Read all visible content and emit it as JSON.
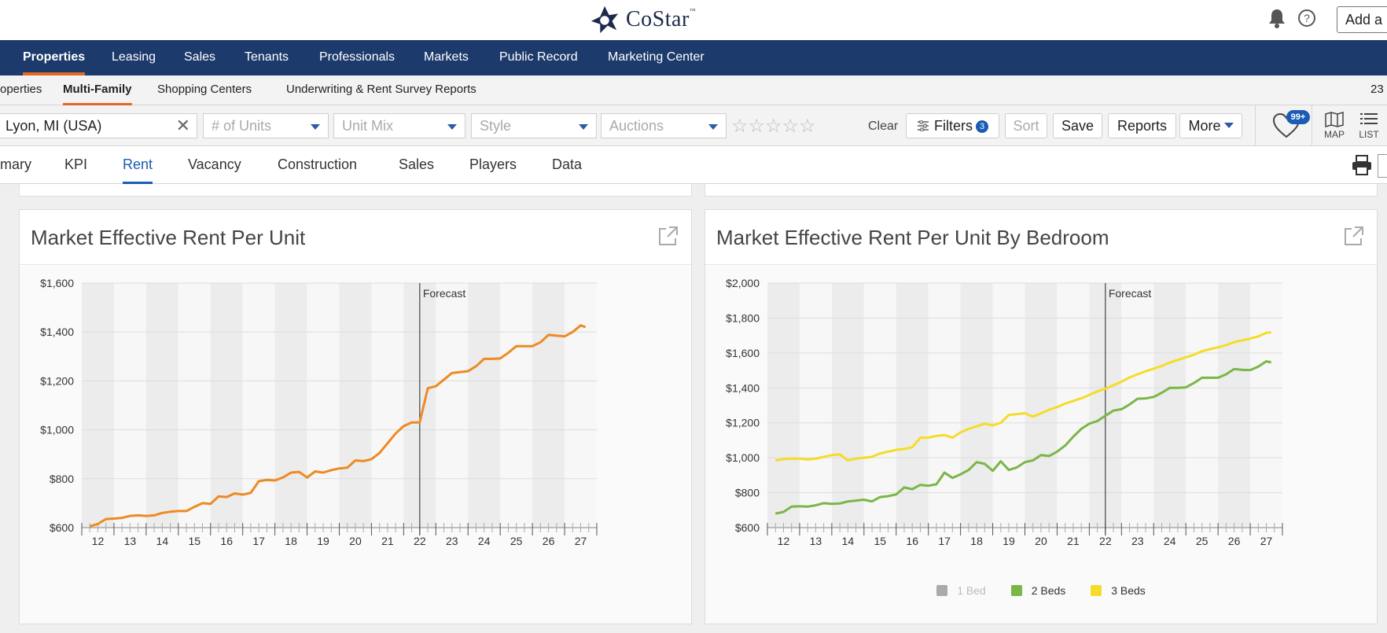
{
  "header": {
    "brand": "CoStar",
    "trademark": "™",
    "add_button": "Add a l",
    "icons": [
      "bell-icon",
      "help-icon"
    ]
  },
  "main_nav": [
    {
      "label": "Properties",
      "active": true
    },
    {
      "label": "Leasing"
    },
    {
      "label": "Sales"
    },
    {
      "label": "Tenants"
    },
    {
      "label": "Professionals"
    },
    {
      "label": "Markets"
    },
    {
      "label": "Public Record"
    },
    {
      "label": "Marketing Center"
    }
  ],
  "sub_nav": [
    {
      "label": "operties"
    },
    {
      "label": "Multi-Family",
      "active": true
    },
    {
      "label": "Shopping Centers"
    },
    {
      "label": "Underwriting & Rent Survey Reports"
    },
    {
      "label": "23"
    }
  ],
  "filters": {
    "location": "Lyon, MI (USA)",
    "units_placeholder": "# of Units",
    "unit_mix_placeholder": "Unit Mix",
    "style_placeholder": "Style",
    "auctions_placeholder": "Auctions",
    "stars": "☆☆☆☆☆",
    "clear": "Clear",
    "filters_label": "Filters",
    "filters_count": "3",
    "sort": "Sort",
    "save": "Save",
    "reports": "Reports",
    "more": "More",
    "favorites_count": "99+",
    "map": "MAP",
    "list": "LIST"
  },
  "tabs": [
    {
      "label": "mary"
    },
    {
      "label": "KPI"
    },
    {
      "label": "Rent",
      "active": true
    },
    {
      "label": "Vacancy"
    },
    {
      "label": "Construction"
    },
    {
      "label": "Sales"
    },
    {
      "label": "Players"
    },
    {
      "label": "Data"
    }
  ],
  "cards": [
    {
      "title": "Market Effective Rent Per Unit"
    },
    {
      "title": "Market Effective Rent Per Unit By Bedroom"
    }
  ],
  "chart_data": [
    {
      "type": "line",
      "title": "Market Effective Rent Per Unit",
      "categories": [
        "12",
        "13",
        "14",
        "15",
        "16",
        "17",
        "18",
        "19",
        "20",
        "21",
        "22",
        "23",
        "24",
        "25",
        "26",
        "27"
      ],
      "ylim": [
        600,
        1600
      ],
      "yticks": [
        "$600",
        "$800",
        "$1,000",
        "$1,200",
        "$1,400",
        "$1,600"
      ],
      "annotation": "Forecast",
      "forecast_start": 22,
      "colors": {
        "series": "#ee8a22"
      },
      "series": [
        {
          "values": [
            [
              11.75,
              605
            ],
            [
              12,
              615
            ],
            [
              12.25,
              635
            ],
            [
              12.5,
              637
            ],
            [
              12.75,
              640
            ],
            [
              13,
              648
            ],
            [
              13.25,
              650
            ],
            [
              13.5,
              648
            ],
            [
              13.75,
              650
            ],
            [
              14,
              660
            ],
            [
              14.25,
              665
            ],
            [
              14.5,
              668
            ],
            [
              14.75,
              668
            ],
            [
              15,
              685
            ],
            [
              15.25,
              700
            ],
            [
              15.5,
              697
            ],
            [
              15.75,
              728
            ],
            [
              16,
              725
            ],
            [
              16.25,
              740
            ],
            [
              16.5,
              735
            ],
            [
              16.75,
              742
            ],
            [
              17,
              790
            ],
            [
              17.25,
              795
            ],
            [
              17.5,
              793
            ],
            [
              17.75,
              805
            ],
            [
              18,
              825
            ],
            [
              18.25,
              828
            ],
            [
              18.5,
              805
            ],
            [
              18.75,
              830
            ],
            [
              19,
              825
            ],
            [
              19.25,
              835
            ],
            [
              19.5,
              842
            ],
            [
              19.75,
              845
            ],
            [
              20,
              875
            ],
            [
              20.25,
              872
            ],
            [
              20.5,
              880
            ],
            [
              20.75,
              905
            ],
            [
              21,
              945
            ],
            [
              21.25,
              985
            ],
            [
              21.5,
              1015
            ],
            [
              21.75,
              1030
            ],
            [
              22,
              1030
            ],
            [
              22.25,
              1170
            ],
            [
              22.5,
              1178
            ],
            [
              22.75,
              1205
            ],
            [
              23,
              1232
            ],
            [
              23.25,
              1236
            ],
            [
              23.5,
              1240
            ],
            [
              23.75,
              1260
            ],
            [
              24,
              1290
            ],
            [
              24.25,
              1290
            ],
            [
              24.5,
              1292
            ],
            [
              24.75,
              1315
            ],
            [
              25,
              1342
            ],
            [
              25.25,
              1342
            ],
            [
              25.5,
              1342
            ],
            [
              25.75,
              1358
            ],
            [
              26,
              1388
            ],
            [
              26.25,
              1385
            ],
            [
              26.5,
              1382
            ],
            [
              26.75,
              1400
            ],
            [
              27,
              1427
            ],
            [
              27.15,
              1420
            ]
          ]
        }
      ]
    },
    {
      "type": "line",
      "title": "Market Effective Rent Per Unit By Bedroom",
      "categories": [
        "12",
        "13",
        "14",
        "15",
        "16",
        "17",
        "18",
        "19",
        "20",
        "21",
        "22",
        "23",
        "24",
        "25",
        "26",
        "27"
      ],
      "ylim": [
        600,
        2000
      ],
      "yticks": [
        "$600",
        "$800",
        "$1,000",
        "$1,200",
        "$1,400",
        "$1,600",
        "$1,800",
        "$2,000"
      ],
      "annotation": "Forecast",
      "forecast_start": 22,
      "legend": [
        {
          "name": "1 Bed",
          "color": "#aaaaaa",
          "hidden": true
        },
        {
          "name": "2 Beds",
          "color": "#7ab648"
        },
        {
          "name": "3 Beds",
          "color": "#f5dc2a"
        }
      ],
      "series": [
        {
          "name": "2 Beds",
          "values": [
            [
              11.75,
              680
            ],
            [
              12,
              690
            ],
            [
              12.25,
              720
            ],
            [
              12.5,
              722
            ],
            [
              12.75,
              720
            ],
            [
              13,
              728
            ],
            [
              13.25,
              740
            ],
            [
              13.5,
              736
            ],
            [
              13.75,
              738
            ],
            [
              14,
              750
            ],
            [
              14.25,
              755
            ],
            [
              14.5,
              760
            ],
            [
              14.75,
              750
            ],
            [
              15,
              775
            ],
            [
              15.25,
              780
            ],
            [
              15.5,
              790
            ],
            [
              15.75,
              830
            ],
            [
              16,
              820
            ],
            [
              16.25,
              845
            ],
            [
              16.5,
              840
            ],
            [
              16.75,
              848
            ],
            [
              17,
              915
            ],
            [
              17.25,
              885
            ],
            [
              17.5,
              905
            ],
            [
              17.75,
              930
            ],
            [
              18,
              975
            ],
            [
              18.25,
              965
            ],
            [
              18.5,
              925
            ],
            [
              18.75,
              980
            ],
            [
              19,
              930
            ],
            [
              19.25,
              945
            ],
            [
              19.5,
              975
            ],
            [
              19.75,
              985
            ],
            [
              20,
              1015
            ],
            [
              20.25,
              1010
            ],
            [
              20.5,
              1035
            ],
            [
              20.75,
              1070
            ],
            [
              21,
              1120
            ],
            [
              21.25,
              1165
            ],
            [
              21.5,
              1195
            ],
            [
              21.75,
              1210
            ],
            [
              22,
              1240
            ],
            [
              22.25,
              1270
            ],
            [
              22.5,
              1278
            ],
            [
              22.75,
              1305
            ],
            [
              23,
              1338
            ],
            [
              23.25,
              1340
            ],
            [
              23.5,
              1348
            ],
            [
              23.75,
              1372
            ],
            [
              24,
              1400
            ],
            [
              24.25,
              1400
            ],
            [
              24.5,
              1403
            ],
            [
              24.75,
              1428
            ],
            [
              25,
              1458
            ],
            [
              25.25,
              1458
            ],
            [
              25.5,
              1458
            ],
            [
              25.75,
              1478
            ],
            [
              26,
              1508
            ],
            [
              26.25,
              1503
            ],
            [
              26.5,
              1502
            ],
            [
              26.75,
              1522
            ],
            [
              27,
              1552
            ],
            [
              27.15,
              1546
            ]
          ]
        },
        {
          "name": "3 Beds",
          "values": [
            [
              11.75,
              985
            ],
            [
              12,
              992
            ],
            [
              12.25,
              995
            ],
            [
              12.5,
              995
            ],
            [
              12.75,
              990
            ],
            [
              13,
              995
            ],
            [
              13.25,
              1005
            ],
            [
              13.5,
              1015
            ],
            [
              13.75,
              1020
            ],
            [
              14,
              985
            ],
            [
              14.25,
              995
            ],
            [
              14.5,
              1000
            ],
            [
              14.75,
              1005
            ],
            [
              15,
              1025
            ],
            [
              15.25,
              1035
            ],
            [
              15.5,
              1045
            ],
            [
              15.75,
              1050
            ],
            [
              16,
              1060
            ],
            [
              16.25,
              1115
            ],
            [
              16.5,
              1115
            ],
            [
              16.75,
              1125
            ],
            [
              17,
              1130
            ],
            [
              17.25,
              1115
            ],
            [
              17.5,
              1145
            ],
            [
              17.75,
              1165
            ],
            [
              18,
              1180
            ],
            [
              18.25,
              1195
            ],
            [
              18.5,
              1185
            ],
            [
              18.75,
              1200
            ],
            [
              19,
              1245
            ],
            [
              19.25,
              1250
            ],
            [
              19.5,
              1255
            ],
            [
              19.75,
              1235
            ],
            [
              20,
              1255
            ],
            [
              20.25,
              1275
            ],
            [
              20.5,
              1290
            ],
            [
              20.75,
              1310
            ],
            [
              21,
              1325
            ],
            [
              21.25,
              1340
            ],
            [
              21.5,
              1360
            ],
            [
              21.75,
              1380
            ],
            [
              22,
              1395
            ],
            [
              22.25,
              1415
            ],
            [
              22.5,
              1435
            ],
            [
              22.75,
              1460
            ],
            [
              23,
              1478
            ],
            [
              23.25,
              1495
            ],
            [
              23.5,
              1510
            ],
            [
              23.75,
              1525
            ],
            [
              24,
              1545
            ],
            [
              24.25,
              1560
            ],
            [
              24.5,
              1575
            ],
            [
              24.75,
              1590
            ],
            [
              25,
              1610
            ],
            [
              25.25,
              1622
            ],
            [
              25.5,
              1632
            ],
            [
              25.75,
              1645
            ],
            [
              26,
              1662
            ],
            [
              26.25,
              1672
            ],
            [
              26.5,
              1682
            ],
            [
              26.75,
              1695
            ],
            [
              27,
              1715
            ],
            [
              27.15,
              1718
            ]
          ]
        }
      ]
    }
  ]
}
